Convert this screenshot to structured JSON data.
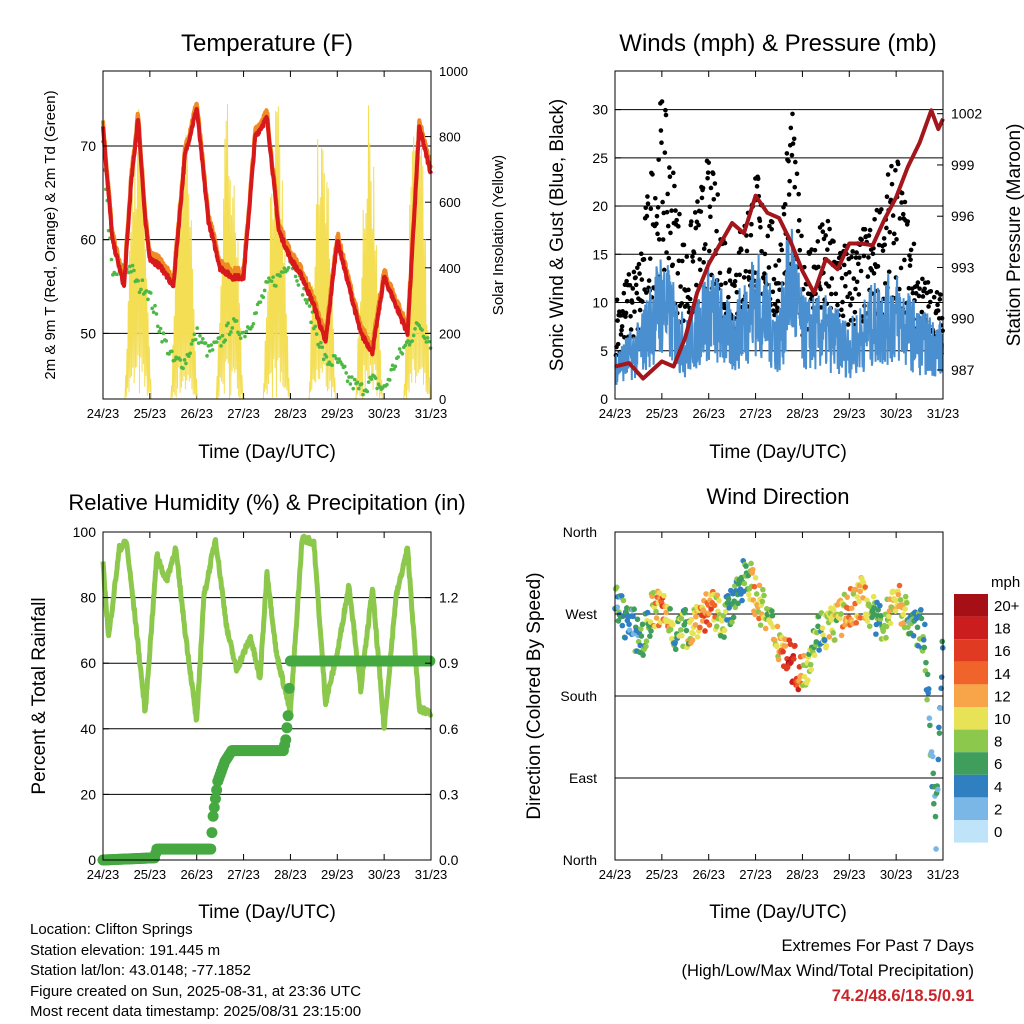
{
  "chart_data": [
    {
      "id": "temperature",
      "type": "line",
      "title": "Temperature (F)",
      "xlabel": "Time (Day/UTC)",
      "ylabel_left": "2m & 9m T (Red, Orange) & 2m Td (Green)",
      "ylabel_right": "Solar Insolation (Yellow)",
      "x_ticks": [
        "24/23",
        "25/23",
        "26/23",
        "27/23",
        "28/23",
        "29/23",
        "30/23",
        "31/23"
      ],
      "ylim": [
        43,
        78
      ],
      "y_ticks": [
        50,
        60,
        70
      ],
      "y2lim": [
        0,
        1000
      ],
      "y2_ticks": [
        0,
        200,
        400,
        600,
        800,
        1000
      ],
      "grid_y": [
        50,
        60,
        70
      ],
      "colors": {
        "t2m": "#d7191c",
        "t9m": "#f08a24",
        "td2m": "#4db843",
        "solar": "#f4de53"
      },
      "series": [
        {
          "key": "t2m",
          "x": [
            0,
            0.2,
            0.45,
            0.6,
            0.75,
            0.9,
            1.0,
            1.25,
            1.5,
            1.75,
            2.0,
            2.25,
            2.5,
            2.75,
            3.0,
            3.25,
            3.5,
            3.75,
            4.0,
            4.25,
            4.5,
            4.75,
            5.0,
            5.25,
            5.5,
            5.75,
            6.0,
            6.25,
            6.5,
            6.75,
            7.0
          ],
          "y": [
            72,
            60,
            55,
            66,
            73,
            62,
            58,
            57,
            55,
            69,
            74,
            62,
            57,
            56,
            56,
            71,
            73,
            61,
            58,
            56,
            53,
            49,
            60,
            55,
            50,
            48,
            56,
            53,
            50,
            72,
            67
          ]
        },
        {
          "key": "td2m",
          "x": [
            0,
            0.2,
            0.45,
            0.6,
            0.75,
            0.9,
            1.0,
            1.25,
            1.5,
            1.75,
            2.0,
            2.25,
            2.5,
            2.75,
            3.0,
            3.25,
            3.5,
            3.75,
            4.0,
            4.25,
            4.5,
            4.75,
            5.0,
            5.25,
            5.5,
            5.75,
            6.0,
            6.25,
            6.5,
            6.75,
            7.0
          ],
          "y": [
            70,
            56,
            57,
            57,
            55,
            55,
            54,
            50,
            47,
            47,
            50,
            48,
            49,
            51,
            50,
            52,
            55,
            56,
            58,
            55,
            51,
            47,
            47,
            45,
            44,
            45,
            44,
            47,
            49,
            51,
            49
          ]
        },
        {
          "key": "solar",
          "peaks": [
            0.75,
            1.73,
            2.7,
            3.7,
            4.68,
            5.68,
            6.7
          ],
          "peak_values": [
            960,
            860,
            960,
            920,
            950,
            900,
            940
          ]
        }
      ]
    },
    {
      "id": "winds",
      "type": "line",
      "title": "Winds (mph) & Pressure (mb)",
      "xlabel": "Time (Day/UTC)",
      "ylabel_left": "Sonic Wind & Gust (Blue, Black)",
      "ylabel_right": "Station Pressure (Maroon)",
      "x_ticks": [
        "24/23",
        "25/23",
        "26/23",
        "27/23",
        "28/23",
        "29/23",
        "30/23",
        "31/23"
      ],
      "ylim": [
        0,
        34
      ],
      "y_ticks": [
        0,
        5,
        10,
        15,
        20,
        25,
        30
      ],
      "y2lim": [
        985.3,
        1004.5
      ],
      "y2_ticks": [
        987,
        990,
        993,
        996,
        999,
        1002
      ],
      "grid_y": [
        5,
        10,
        15,
        20,
        25,
        30
      ],
      "colors": {
        "wind": "#4a8fcf",
        "gust": "#000000",
        "pressure": "#a3161b"
      },
      "series": [
        {
          "key": "wind",
          "x": [
            0,
            0.5,
            1.0,
            1.5,
            2.0,
            2.5,
            3.0,
            3.5,
            3.75,
            4.0,
            4.5,
            5.0,
            5.5,
            6.0,
            6.5,
            7.0
          ],
          "y": [
            4,
            6,
            12,
            6,
            11,
            7,
            12,
            7,
            15,
            8,
            8,
            6,
            9,
            10,
            7,
            6
          ]
        },
        {
          "key": "gust",
          "x": [
            0,
            0.5,
            1.0,
            1.5,
            2.0,
            2.5,
            3.0,
            3.5,
            3.75,
            4.0,
            4.5,
            5.0,
            5.5,
            6.0,
            6.5,
            7.0
          ],
          "y": [
            8,
            11,
            24,
            12,
            19,
            11,
            18,
            12,
            24,
            12,
            14,
            12,
            14,
            19,
            10,
            8
          ]
        },
        {
          "key": "pressure",
          "x": [
            0,
            0.3,
            0.6,
            1.0,
            1.25,
            1.5,
            1.75,
            2.0,
            2.25,
            2.5,
            2.75,
            3.0,
            3.25,
            3.5,
            3.75,
            4.0,
            4.25,
            4.5,
            4.75,
            5.0,
            5.25,
            5.5,
            5.75,
            6.0,
            6.25,
            6.5,
            6.75,
            6.9,
            7.0
          ],
          "y": [
            987.2,
            987.4,
            986.5,
            987.5,
            987.2,
            988.9,
            991.5,
            993.2,
            994.4,
            995.6,
            995.0,
            997.2,
            996.2,
            995.9,
            994.5,
            992.8,
            991.5,
            993.5,
            992.9,
            994.4,
            994.4,
            994.3,
            995.8,
            997.1,
            998.9,
            1000.3,
            1002.2,
            1001.1,
            1001.7
          ]
        }
      ]
    },
    {
      "id": "humidity",
      "type": "line",
      "title": "Relative Humidity (%) & Precipitation (in)",
      "xlabel": "Time (Day/UTC)",
      "ylabel_left": "Percent & Total Rainfall",
      "x_ticks": [
        "24/23",
        "25/23",
        "26/23",
        "27/23",
        "28/23",
        "29/23",
        "30/23",
        "31/23"
      ],
      "ylim": [
        0,
        100
      ],
      "y_ticks": [
        0,
        20,
        40,
        60,
        80,
        100
      ],
      "y2lim": [
        0,
        1.5
      ],
      "y2_ticks": [
        "0.0",
        "0.3",
        "0.6",
        "0.9",
        "1.2"
      ],
      "grid_y": [
        20,
        40,
        60,
        80
      ],
      "colors": {
        "rh": "#8cc84b",
        "precip": "#46a840"
      },
      "series": [
        {
          "key": "rh",
          "x": [
            0,
            0.12,
            0.35,
            0.5,
            0.7,
            0.9,
            1.15,
            1.35,
            1.55,
            1.75,
            2.0,
            2.15,
            2.4,
            2.65,
            2.85,
            3.15,
            3.35,
            3.5,
            3.7,
            4.0,
            4.25,
            4.5,
            4.75,
            5.0,
            5.25,
            5.5,
            5.75,
            6.0,
            6.25,
            6.5,
            6.75,
            7.0
          ],
          "y": [
            90,
            68,
            95,
            97,
            72,
            45,
            93,
            85,
            95,
            70,
            42,
            80,
            98,
            70,
            58,
            68,
            55,
            88,
            63,
            45,
            98,
            97,
            48,
            63,
            84,
            52,
            83,
            40,
            80,
            95,
            46,
            45
          ]
        },
        {
          "key": "precip",
          "x": [
            0,
            1.1,
            1.15,
            2.3,
            2.35,
            2.45,
            2.6,
            2.75,
            3.85,
            3.9,
            3.95,
            4.0,
            7.0
          ],
          "y": [
            0,
            0.01,
            0.05,
            0.05,
            0.2,
            0.36,
            0.45,
            0.5,
            0.5,
            0.55,
            0.66,
            0.91,
            0.91
          ]
        }
      ]
    },
    {
      "id": "direction",
      "type": "scatter",
      "title": "Wind Direction",
      "xlabel": "Time (Day/UTC)",
      "ylabel_left": "Direction (Colored By Speed)",
      "x_ticks": [
        "24/23",
        "25/23",
        "26/23",
        "27/23",
        "28/23",
        "29/23",
        "30/23",
        "31/23"
      ],
      "ylim": [
        0,
        360
      ],
      "y_ticks": [
        "North",
        "East",
        "South",
        "West",
        "North"
      ],
      "grid_y": [
        90,
        180,
        270
      ],
      "series": [
        {
          "key": "direction",
          "x": [
            0,
            0.3,
            0.6,
            0.8,
            1.0,
            1.3,
            1.6,
            1.8,
            2.0,
            2.3,
            2.5,
            2.8,
            3.0,
            3.3,
            3.5,
            3.75,
            4.0,
            4.3,
            4.5,
            4.8,
            5.0,
            5.3,
            5.6,
            5.8,
            6.0,
            6.3,
            6.6,
            6.85,
            7.0
          ],
          "y": [
            280,
            260,
            240,
            275,
            275,
            250,
            255,
            270,
            275,
            265,
            275,
            320,
            290,
            260,
            240,
            220,
            200,
            250,
            255,
            265,
            275,
            290,
            260,
            265,
            290,
            260,
            250,
            30,
            260
          ],
          "speed": [
            5,
            4,
            5,
            10,
            14,
            6,
            9,
            12,
            14,
            8,
            5,
            7,
            11,
            7,
            10,
            18,
            12,
            6,
            8,
            10,
            12,
            11,
            6,
            8,
            12,
            5,
            6,
            4,
            4
          ]
        }
      ]
    }
  ],
  "legend": {
    "unit_label": "mph",
    "labels": [
      "20+",
      "18",
      "16",
      "14",
      "12",
      "10",
      "8",
      "6",
      "4",
      "2",
      "0"
    ],
    "colors": [
      "#a50f15",
      "#cb1d1e",
      "#e03a23",
      "#f0642b",
      "#f8a54a",
      "#e8e356",
      "#8cc84b",
      "#3f9e5b",
      "#2f7fc1",
      "#7bb7e6",
      "#bfe4fa"
    ]
  },
  "info": {
    "location": "Location: Clifton Springs",
    "elevation": "Station elevation: 191.445 m",
    "latlon": "Station lat/lon: 43.0148; -77.1852",
    "created": "Figure created on Sun, 2025-08-31, at 23:36 UTC",
    "recent": "Most recent data timestamp: 2025/08/31 23:15:00"
  },
  "extremes": {
    "title": "Extremes For Past 7 Days",
    "subtitle": "(High/Low/Max Wind/Total Precipitation)",
    "values": "74.2/48.6/18.5/0.91"
  }
}
